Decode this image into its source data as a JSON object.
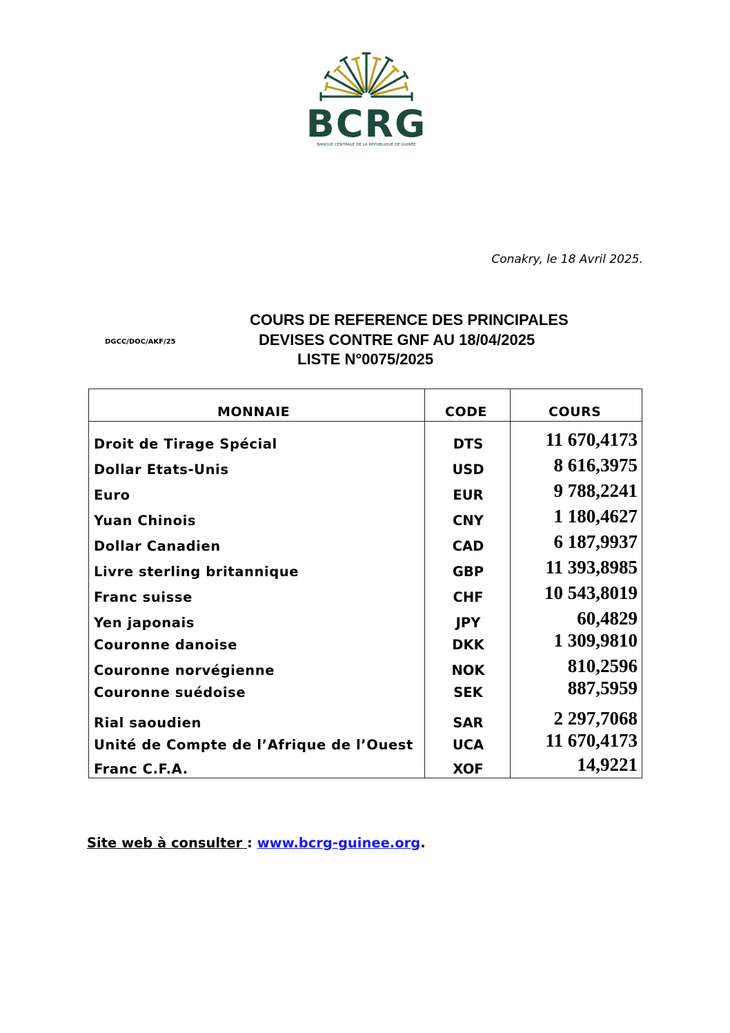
{
  "logo": {
    "name": "BCRG",
    "subtitle": "BANQUE CENTRALE DE LA RÉPUBLIQUE DE GUINÉE",
    "colors": {
      "green": "#1e4a3e",
      "gold": "#b9a22b"
    }
  },
  "date_line": "Conakry, le 18 Avril 2025.",
  "reference": "DGCC/DOC/AKF/25",
  "title": {
    "line1": "COURS DE REFERENCE DES PRINCIPALES",
    "line2": "DEVISES CONTRE GNF AU 18/04/2025",
    "line3": "LISTE N°0075/2025"
  },
  "table": {
    "headers": {
      "currency": "MONNAIE",
      "code": "CODE",
      "rate": "COURS"
    },
    "rows": [
      {
        "name": "Droit de Tirage Spécial",
        "code": "DTS",
        "rate": "11 670,4173"
      },
      {
        "name": "Dollar Etats-Unis",
        "code": "USD",
        "rate": "8 616,3975"
      },
      {
        "name": "Euro",
        "code": "EUR",
        "rate": "9 788,2241"
      },
      {
        "name": "Yuan Chinois",
        "code": "CNY",
        "rate": "1 180,4627"
      },
      {
        "name": "Dollar Canadien",
        "code": "CAD",
        "rate": "6 187,9937"
      },
      {
        "name": "Livre sterling britannique",
        "code": "GBP",
        "rate": "11 393,8985"
      },
      {
        "name": "Franc suisse",
        "code": "CHF",
        "rate": "10 543,8019"
      },
      {
        "name": "Yen japonais",
        "code": "JPY",
        "rate": "60,4829"
      },
      {
        "name": "Couronne danoise",
        "code": "DKK",
        "rate": "1 309,9810"
      },
      {
        "name": "Couronne norvégienne",
        "code": "NOK",
        "rate": "810,2596"
      },
      {
        "name": "Couronne suédoise",
        "code": "SEK",
        "rate": "887,5959"
      },
      {
        "name": "Rial saoudien",
        "code": "SAR",
        "rate": "2 297,7068"
      },
      {
        "name": "Unité de Compte de l’Afrique de l’Ouest",
        "code": "UCA",
        "rate": "11 670,4173"
      },
      {
        "name": "Franc C.F.A.",
        "code": "XOF",
        "rate": "14,9221"
      }
    ]
  },
  "footer": {
    "label": "Site web à consulter ",
    "separator": ": ",
    "link": "www.bcrg-guinee.org",
    "end": "."
  }
}
